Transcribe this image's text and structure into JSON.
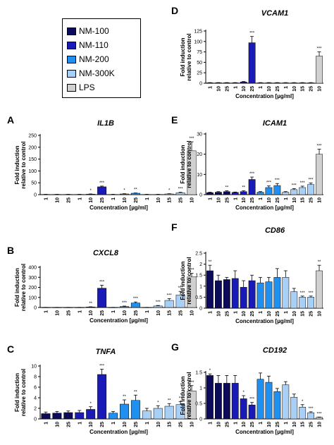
{
  "legend": [
    {
      "label": "NM-100",
      "color": "#0b0b5a"
    },
    {
      "label": "NM-110",
      "color": "#1a1ab8"
    },
    {
      "label": "NM-200",
      "color": "#1f8ff0"
    },
    {
      "label": "NM-300K",
      "color": "#a8cff5"
    },
    {
      "label": "LPS",
      "color": "#d0d0d0"
    }
  ],
  "chart_data": [
    {
      "letter": "A",
      "title": "IL1B",
      "type": "bar",
      "xlabel": "Concentration [µg/ml]",
      "ylabel": "Fold induction relative to control",
      "ylim": [
        0,
        250
      ],
      "yticks": [
        0,
        50,
        100,
        150,
        200,
        250
      ],
      "categories": [
        "1",
        "10",
        "25",
        "1",
        "10",
        "25",
        "1",
        "10",
        "25",
        "1",
        "10",
        "15",
        "25",
        "10"
      ],
      "groups": [
        "NM-100",
        "NM-100",
        "NM-100",
        "NM-110",
        "NM-110",
        "NM-110",
        "NM-200",
        "NM-200",
        "NM-200",
        "NM-300K",
        "NM-300K",
        "NM-300K",
        "NM-300K",
        "LPS"
      ],
      "values": [
        1,
        1,
        1,
        1,
        2,
        33,
        1,
        3,
        6,
        1,
        1,
        3,
        8,
        185
      ],
      "errors": [
        0.5,
        0.5,
        0.5,
        0.5,
        1,
        3,
        0.5,
        1,
        1,
        0.5,
        0.5,
        1,
        2,
        38
      ],
      "significance": [
        "",
        "",
        "",
        "",
        "*",
        "***",
        "",
        "*",
        "**",
        "",
        "",
        "*",
        "***",
        "***"
      ]
    },
    {
      "letter": "B",
      "title": "CXCL8",
      "type": "bar",
      "xlabel": "Concentration [µg/ml]",
      "ylabel": "Fold induction relative to control",
      "ylim": [
        0,
        400
      ],
      "yticks": [
        0,
        100,
        200,
        300,
        400
      ],
      "categories": [
        "1",
        "10",
        "25",
        "1",
        "10",
        "25",
        "1",
        "10",
        "25",
        "1",
        "10",
        "15",
        "25",
        "10"
      ],
      "groups": [
        "NM-100",
        "NM-100",
        "NM-100",
        "NM-110",
        "NM-110",
        "NM-110",
        "NM-200",
        "NM-200",
        "NM-200",
        "NM-300K",
        "NM-300K",
        "NM-300K",
        "NM-300K",
        "LPS"
      ],
      "values": [
        1,
        1,
        1,
        1,
        5,
        192,
        1,
        10,
        45,
        1,
        15,
        70,
        125,
        305
      ],
      "errors": [
        0.5,
        0.5,
        0.5,
        0.5,
        2,
        30,
        0.5,
        4,
        10,
        0.5,
        5,
        18,
        35,
        35
      ],
      "significance": [
        "",
        "",
        "",
        "",
        "**",
        "***",
        "",
        "***",
        "***",
        "",
        "***",
        "***",
        "***",
        "***"
      ]
    },
    {
      "letter": "C",
      "title": "TNFA",
      "type": "bar",
      "xlabel": "Concentration [µg/ml]",
      "ylabel": "Fold induction relative to control",
      "ylim": [
        0,
        10
      ],
      "yticks": [
        0,
        2,
        4,
        6,
        8,
        10
      ],
      "categories": [
        "1",
        "10",
        "25",
        "1",
        "10",
        "25",
        "1",
        "10",
        "25",
        "1",
        "10",
        "15",
        "25",
        "10"
      ],
      "groups": [
        "NM-100",
        "NM-100",
        "NM-100",
        "NM-110",
        "NM-110",
        "NM-110",
        "NM-200",
        "NM-200",
        "NM-200",
        "NM-300K",
        "NM-300K",
        "NM-300K",
        "NM-300K",
        "LPS"
      ],
      "values": [
        1,
        1.1,
        1.2,
        1.2,
        1.8,
        8.4,
        1.1,
        2.8,
        3.5,
        1.5,
        2.0,
        2.4,
        2.7,
        5.3
      ],
      "errors": [
        0.3,
        0.3,
        0.3,
        0.4,
        0.5,
        1.0,
        0.3,
        0.8,
        1.0,
        0.5,
        0.5,
        0.5,
        0.6,
        1.0
      ],
      "significance": [
        "",
        "",
        "",
        "",
        "*",
        "***",
        "",
        "**",
        "**",
        "",
        "*",
        "**",
        "**",
        "***"
      ]
    },
    {
      "letter": "D",
      "title": "VCAM1",
      "type": "bar",
      "xlabel": "Concentration [µg/ml]",
      "ylabel": "Fold induction relative to control",
      "ylim": [
        0,
        125
      ],
      "yticks": [
        0,
        25,
        50,
        75,
        100,
        125
      ],
      "categories": [
        "1",
        "10",
        "25",
        "1",
        "10",
        "25",
        "1",
        "10",
        "25",
        "1",
        "10",
        "15",
        "25",
        "10"
      ],
      "groups": [
        "NM-100",
        "NM-100",
        "NM-100",
        "NM-110",
        "NM-110",
        "NM-110",
        "NM-200",
        "NM-200",
        "NM-200",
        "NM-300K",
        "NM-300K",
        "NM-300K",
        "NM-300K",
        "LPS"
      ],
      "values": [
        1,
        1,
        1,
        1,
        3,
        97,
        1,
        1,
        1,
        1,
        1,
        1,
        1,
        65
      ],
      "errors": [
        0.5,
        0.5,
        0.5,
        0.5,
        1,
        15,
        0.5,
        0.5,
        0.5,
        0.5,
        0.5,
        0.5,
        0.5,
        10
      ],
      "significance": [
        "",
        "",
        "",
        "",
        "",
        "***",
        "",
        "",
        "",
        "",
        "",
        "",
        "",
        "***"
      ]
    },
    {
      "letter": "E",
      "title": "ICAM1",
      "type": "bar",
      "xlabel": "Concentration [µg/ml]",
      "ylabel": "Fold induction relative to control",
      "ylim": [
        0,
        30
      ],
      "yticks": [
        0,
        10,
        20,
        30
      ],
      "categories": [
        "1",
        "10",
        "25",
        "1",
        "10",
        "25",
        "1",
        "10",
        "25",
        "1",
        "10",
        "15",
        "25",
        "10"
      ],
      "groups": [
        "NM-100",
        "NM-100",
        "NM-100",
        "NM-110",
        "NM-110",
        "NM-110",
        "NM-200",
        "NM-200",
        "NM-200",
        "NM-300K",
        "NM-300K",
        "NM-300K",
        "NM-300K",
        "LPS"
      ],
      "values": [
        1,
        1.2,
        1.5,
        1.1,
        1.5,
        7.5,
        1.2,
        3.5,
        4.5,
        1.2,
        2.5,
        3.5,
        5,
        20
      ],
      "errors": [
        0.2,
        0.3,
        0.4,
        0.2,
        0.4,
        1.2,
        0.3,
        0.8,
        1.0,
        0.3,
        0.5,
        0.7,
        0.8,
        2.5
      ],
      "significance": [
        "",
        "",
        "**",
        "",
        "**",
        "***",
        "",
        "***",
        "***",
        "",
        "***",
        "***",
        "***",
        "***"
      ]
    },
    {
      "letter": "F",
      "title": "CD86",
      "type": "bar",
      "xlabel": "Concentration [µg/ml]",
      "ylabel": "Fold induction relative to control",
      "ylim": [
        0,
        2.5
      ],
      "yticks": [
        0,
        0.5,
        1,
        1.5,
        2,
        2.5
      ],
      "categories": [
        "1",
        "10",
        "25",
        "1",
        "10",
        "25",
        "1",
        "10",
        "25",
        "1",
        "10",
        "15",
        "25",
        "10"
      ],
      "groups": [
        "NM-100",
        "NM-100",
        "NM-100",
        "NM-110",
        "NM-110",
        "NM-110",
        "NM-200",
        "NM-200",
        "NM-200",
        "NM-300K",
        "NM-300K",
        "NM-300K",
        "NM-300K",
        "LPS"
      ],
      "values": [
        1.7,
        1.25,
        1.3,
        1.35,
        0.95,
        1.25,
        1.15,
        1.2,
        1.4,
        1.4,
        0.75,
        0.5,
        0.5,
        1.7
      ],
      "errors": [
        0.25,
        0.25,
        0.1,
        0.35,
        0.3,
        0.25,
        0.25,
        0.2,
        0.4,
        0.3,
        0.15,
        0.05,
        0.05,
        0.25
      ],
      "significance": [
        "**",
        "",
        "",
        "",
        "",
        "",
        "",
        "",
        "",
        "",
        "",
        "***",
        "***",
        "**"
      ]
    },
    {
      "letter": "G",
      "title": "CD192",
      "type": "bar",
      "xlabel": "Concentration [µg/ml]",
      "ylabel": "Fold induction relative to control",
      "ylim": [
        0,
        1.5
      ],
      "yticks": [
        0,
        0.5,
        1,
        1.5
      ],
      "categories": [
        "1",
        "10",
        "25",
        "1",
        "10",
        "25",
        "1",
        "10",
        "25",
        "1",
        "10",
        "15",
        "25",
        "10"
      ],
      "groups": [
        "NM-100",
        "NM-100",
        "NM-100",
        "NM-110",
        "NM-110",
        "NM-110",
        "NM-200",
        "NM-200",
        "NM-200",
        "NM-300K",
        "NM-300K",
        "NM-300K",
        "NM-300K",
        "LPS"
      ],
      "values": [
        1.4,
        1.15,
        1.15,
        1.15,
        0.65,
        0.45,
        1.28,
        1.18,
        0.88,
        1.1,
        0.7,
        0.38,
        0.2,
        0.05
      ],
      "errors": [
        0.05,
        0.25,
        0.25,
        0.25,
        0.1,
        0.08,
        0.2,
        0.2,
        0.1,
        0.1,
        0.1,
        0.08,
        0.03,
        0.01
      ],
      "significance": [
        "*",
        "",
        "",
        "",
        "*",
        "***",
        "",
        "",
        "",
        "",
        "",
        "*",
        "***",
        "***"
      ]
    }
  ]
}
